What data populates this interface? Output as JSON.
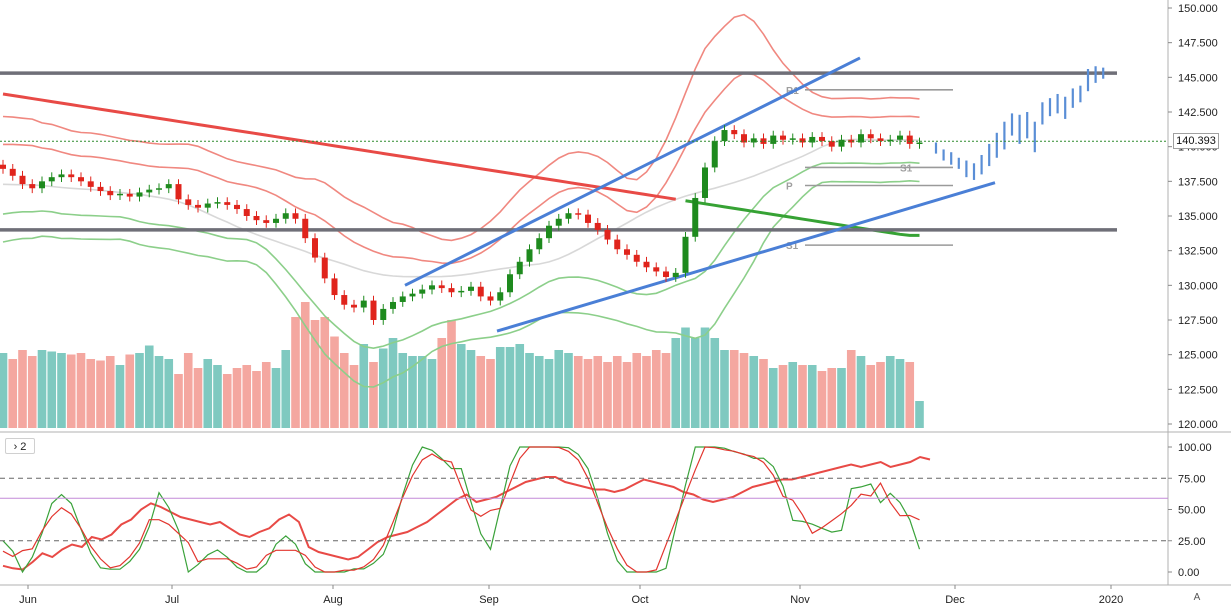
{
  "chart_data": {
    "type": "candlestick",
    "price_axis": {
      "ticks": [
        "150.000",
        "147.500",
        "145.000",
        "142.500",
        "140.000",
        "137.500",
        "135.000",
        "132.500",
        "130.000",
        "127.500",
        "125.000",
        "122.500",
        "120.000"
      ],
      "range": [
        120.0,
        150.0
      ],
      "current_price_label": "140.393",
      "current_price": 140.393
    },
    "oscillator_axis": {
      "ticks": [
        "100.00",
        "75.00",
        "50.00",
        "25.00",
        "0.00"
      ],
      "range": [
        0,
        100
      ],
      "reference_levels": [
        75,
        25,
        59
      ]
    },
    "x_ticks": [
      "Jun",
      "Jul",
      "Aug",
      "Sep",
      "Oct",
      "Nov",
      "Dec",
      "2020"
    ],
    "horizontal_levels": [
      145.3,
      134.0
    ],
    "pivot_labels": [
      "R1",
      "S1",
      "P",
      "S1"
    ],
    "pivots": [
      {
        "label": "R1",
        "value": 144.1
      },
      {
        "label": "S1",
        "value": 138.5
      },
      {
        "label": "P",
        "value": 137.2
      },
      {
        "label": "S1",
        "value": 132.9
      }
    ],
    "trendlines": [
      {
        "from": [
          "Aug 14",
          130.0
        ],
        "to": [
          "Nov 15",
          146.4
        ]
      },
      {
        "from": [
          "Sep 1",
          126.7
        ],
        "to": [
          "Dec 10",
          137.4
        ]
      }
    ],
    "oscillator_panel_label": "2",
    "auto_scale_label": "A",
    "colors": {
      "up": "#1e8a1e",
      "down": "#e0241c",
      "vol_up": "#7fc9c0",
      "vol_down": "#f4a7a0",
      "level": "#6f6f78",
      "trend": "#4a7fd6",
      "ma_red": "#e84a46",
      "ma_green": "#36a234",
      "ma_gray": "#d8d8d8",
      "band_red": "#f08880",
      "band_green": "#8ccf8a",
      "projection": "#5a8ed6"
    },
    "series": [
      {
        "name": "price",
        "key_points": [
          [
            138.4
          ],
          [
            137.9
          ],
          [
            137.3
          ],
          [
            137.0
          ],
          [
            137.5
          ],
          [
            137.8
          ],
          [
            138.0
          ],
          [
            137.8
          ],
          [
            137.5
          ],
          [
            137.1
          ],
          [
            136.8
          ],
          [
            136.5
          ],
          [
            136.6
          ],
          [
            136.4
          ],
          [
            136.7
          ],
          [
            136.9
          ],
          [
            137.0
          ],
          [
            137.3
          ],
          [
            136.2
          ],
          [
            135.8
          ],
          [
            135.6
          ],
          [
            135.9
          ],
          [
            136.0
          ],
          [
            135.8
          ],
          [
            135.5
          ],
          [
            135.0
          ],
          [
            134.7
          ],
          [
            134.5
          ],
          [
            134.8
          ],
          [
            135.2
          ],
          [
            134.8
          ],
          [
            133.4
          ],
          [
            132.0
          ],
          [
            130.5
          ],
          [
            129.3
          ],
          [
            128.6
          ],
          [
            128.4
          ],
          [
            128.9
          ],
          [
            127.5
          ],
          [
            128.3
          ],
          [
            128.8
          ],
          [
            129.2
          ],
          [
            129.4
          ],
          [
            129.7
          ],
          [
            130.0
          ],
          [
            129.8
          ],
          [
            129.5
          ],
          [
            129.6
          ],
          [
            129.9
          ],
          [
            129.2
          ],
          [
            128.9
          ],
          [
            129.5
          ],
          [
            130.8
          ],
          [
            131.7
          ],
          [
            132.6
          ],
          [
            133.4
          ],
          [
            134.3
          ],
          [
            134.8
          ],
          [
            135.2
          ],
          [
            135.1
          ],
          [
            134.5
          ],
          [
            134.0
          ],
          [
            133.3
          ],
          [
            132.6
          ],
          [
            132.2
          ],
          [
            131.7
          ],
          [
            131.3
          ],
          [
            131.0
          ],
          [
            130.6
          ],
          [
            130.9
          ],
          [
            133.5
          ],
          [
            136.3
          ],
          [
            138.5
          ],
          [
            140.4
          ],
          [
            141.2
          ],
          [
            140.9
          ],
          [
            140.3
          ],
          [
            140.6
          ],
          [
            140.2
          ],
          [
            140.8
          ],
          [
            140.5
          ],
          [
            140.6
          ],
          [
            140.3
          ],
          [
            140.7
          ],
          [
            140.4
          ],
          [
            140.0
          ],
          [
            140.5
          ],
          [
            140.3
          ],
          [
            140.9
          ],
          [
            140.6
          ],
          [
            140.4
          ],
          [
            140.5
          ],
          [
            140.8
          ],
          [
            140.2
          ],
          [
            140.3
          ]
        ]
      },
      {
        "name": "volume_pct",
        "values": [
          50,
          46,
          52,
          48,
          52,
          51,
          50,
          49,
          50,
          46,
          45,
          48,
          42,
          49,
          50,
          55,
          48,
          46,
          36,
          50,
          40,
          46,
          42,
          36,
          40,
          42,
          38,
          44,
          40,
          52,
          74,
          84,
          72,
          74,
          61,
          50,
          42,
          56,
          44,
          53,
          60,
          50,
          48,
          48,
          46,
          60,
          72,
          56,
          52,
          48,
          46,
          54,
          54,
          56,
          50,
          48,
          46,
          52,
          50,
          48,
          46,
          48,
          44,
          48,
          44,
          50,
          48,
          52,
          50,
          60,
          67,
          60,
          67,
          60,
          52,
          52,
          50,
          48,
          46,
          40,
          42,
          44,
          42,
          42,
          38,
          40,
          40,
          52,
          48,
          42,
          44,
          48,
          46,
          44,
          18
        ]
      },
      {
        "name": "osc_red",
        "values": [
          5,
          3,
          2,
          8,
          15,
          12,
          18,
          22,
          20,
          28,
          26,
          30,
          38,
          42,
          50,
          55,
          52,
          48,
          44,
          42,
          40,
          38,
          40,
          35,
          30,
          28,
          32,
          35,
          42,
          46,
          40,
          20,
          16,
          14,
          12,
          10,
          12,
          18,
          24,
          28,
          30,
          32,
          36,
          40,
          46,
          52,
          58,
          62,
          56,
          58,
          60,
          64,
          68,
          72,
          74,
          76,
          76,
          72,
          70,
          68,
          66,
          66,
          64,
          66,
          70,
          74,
          72,
          70,
          68,
          64,
          62,
          58,
          56,
          58,
          60,
          64,
          68,
          70,
          72,
          74,
          74,
          76,
          78,
          80,
          82,
          84,
          86,
          84,
          86,
          88,
          84,
          86,
          88,
          92,
          90
        ]
      }
    ]
  },
  "ui": {
    "osc_toggle_label": "2",
    "auto_label": "A"
  }
}
